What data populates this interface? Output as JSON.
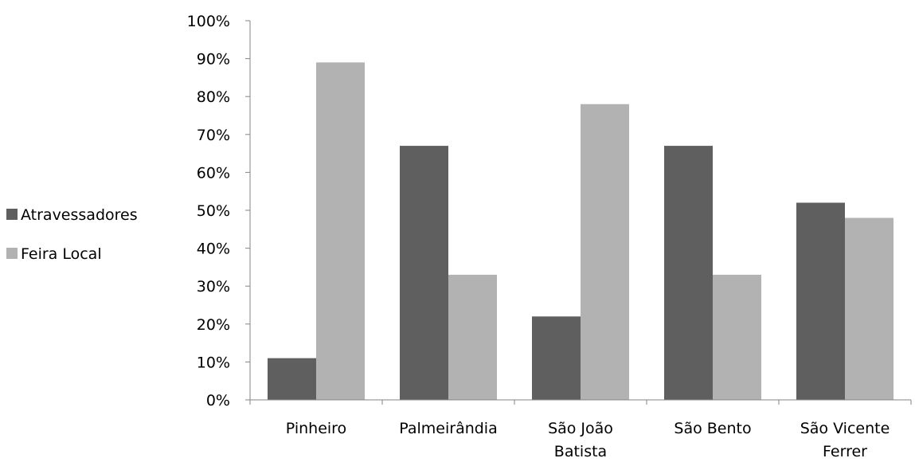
{
  "chart_data": {
    "type": "bar",
    "categories": [
      [
        "Pinheiro"
      ],
      [
        "Palmeirândia"
      ],
      [
        "São João",
        "Batista"
      ],
      [
        "São Bento"
      ],
      [
        "São Vicente",
        "Ferrer"
      ]
    ],
    "series": [
      {
        "name": "Atravessadores",
        "color": "#5f5f5f",
        "values": [
          11,
          67,
          22,
          67,
          52
        ]
      },
      {
        "name": "Feira Local",
        "color": "#b2b2b2",
        "values": [
          89,
          33,
          78,
          33,
          48
        ]
      }
    ],
    "ylim": [
      0,
      100
    ],
    "yticks": [
      "0%",
      "10%",
      "20%",
      "30%",
      "40%",
      "50%",
      "60%",
      "70%",
      "80%",
      "90%",
      "100%"
    ],
    "legend_position": "left",
    "grid": false,
    "title": "",
    "xlabel": "",
    "ylabel": ""
  }
}
